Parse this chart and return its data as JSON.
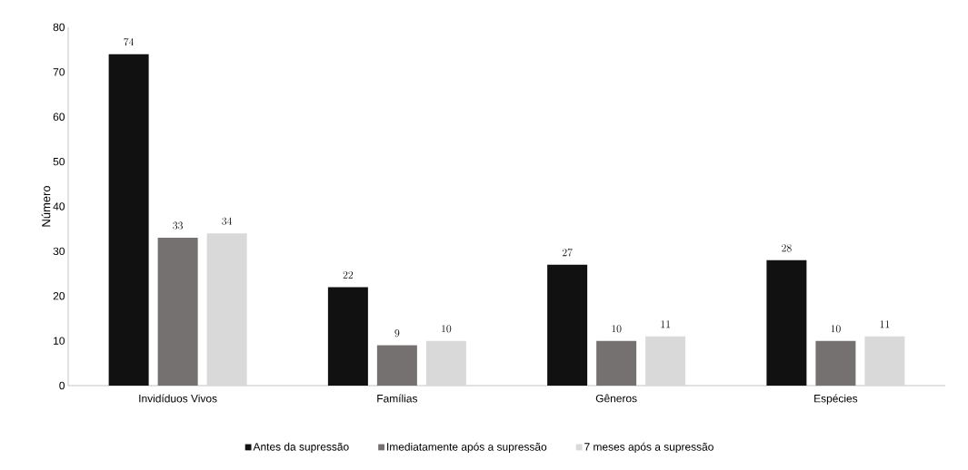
{
  "chart_data": {
    "type": "bar",
    "ylabel": "Número",
    "categories": [
      "Invidíduos Vivos",
      "Famílias",
      "Gêneros",
      "Espécies"
    ],
    "series": [
      {
        "name": "Antes da supressão",
        "color": "#111111",
        "values": [
          74,
          22,
          27,
          28
        ]
      },
      {
        "name": "Imediatamente após a supressão",
        "color": "#767171",
        "values": [
          33,
          9,
          10,
          10
        ]
      },
      {
        "name": "7 meses após a supressão",
        "color": "#d9d9d9",
        "values": [
          34,
          10,
          11,
          11
        ]
      }
    ],
    "ylim": [
      0,
      80
    ],
    "yticks": [
      0,
      10,
      20,
      30,
      40,
      50,
      60,
      70,
      80
    ],
    "grid": false,
    "legend": "bottom",
    "data_labels": true
  }
}
